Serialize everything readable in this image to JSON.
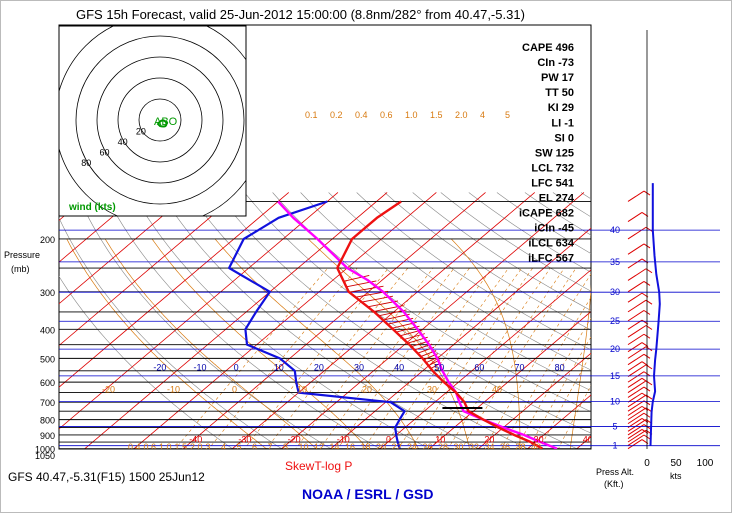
{
  "header": {
    "title": "GFS 15h Forecast, valid 25-Jun-2012 15:00:00 (8.8nm/282° from 40.47,-5.31)"
  },
  "footer": {
    "left": "GFS 40.47,-5.31(F15) 1500 25Jun12",
    "center_title": "SkewT-log P",
    "agency": "NOAA / ESRL / GSD",
    "press_alt_label": "Press Alt.",
    "kft_label": "(Kft.)",
    "kts_label": "kts"
  },
  "colors": {
    "temperature": "#ee1111",
    "dewpoint": "#1111dd",
    "parcel": "#ff00ff",
    "isotherm": "#dd0000",
    "dry_adiabat": "#888888",
    "moist_adiabat": "#d87a10",
    "mixing_ratio": "#d87a10",
    "isobar_line": "#000000",
    "height_line": "#0000cc",
    "wind_barb": "#dd0000",
    "wind_speed": "#1111dd",
    "agency": "#0000cc",
    "hodograph_label": "#009900"
  },
  "chart_data": {
    "type": "skewt",
    "pressure_axis": {
      "label": "Pressure (mb)",
      "label_word": "Pressure",
      "label_unit": "(mb)",
      "levels": [
        200,
        300,
        400,
        500,
        600,
        700,
        800,
        900,
        1000,
        1050
      ],
      "lines": [
        150,
        200,
        250,
        300,
        350,
        400,
        450,
        500,
        550,
        600,
        650,
        700,
        750,
        800,
        850,
        900,
        950,
        1000
      ]
    },
    "isotherm_labels": [
      {
        "t": -40,
        "p": 925
      },
      {
        "t": -30,
        "p": 925
      },
      {
        "t": -20,
        "p": 925
      },
      {
        "t": -10,
        "p": 925
      },
      {
        "t": 0,
        "p": 925
      },
      {
        "t": 10,
        "p": 925
      },
      {
        "t": 20,
        "p": 925
      },
      {
        "t": 30,
        "p": 925
      },
      {
        "t": 40,
        "p": 925
      }
    ],
    "theta_labels": [
      -20,
      -10,
      0,
      10,
      20,
      30,
      40,
      50,
      60,
      70,
      80
    ],
    "theta_e_labels": [
      -20,
      -10,
      0,
      10,
      20,
      30,
      40
    ],
    "mixing_ratio_labels": [
      "0.1",
      "0.2",
      "0.4",
      "0.6",
      "1.0",
      "1.5",
      "2.0",
      "4",
      "5"
    ],
    "mixing_ratio_labels_bottom": [
      "0.4",
      "0.6",
      "1.0",
      "1.5",
      "2.0",
      "3",
      "4",
      "5",
      "6",
      "7",
      "8",
      "10",
      "12",
      "14",
      "16",
      "18",
      "20",
      "22",
      "24",
      "26",
      "28",
      "30",
      "32",
      "34",
      "36",
      "38",
      "40"
    ],
    "temperature": [
      {
        "p": 1000,
        "t": 33
      },
      {
        "p": 950,
        "t": 29
      },
      {
        "p": 900,
        "t": 24
      },
      {
        "p": 850,
        "t": 19
      },
      {
        "p": 800,
        "t": 14
      },
      {
        "p": 750,
        "t": 9
      },
      {
        "p": 700,
        "t": 6
      },
      {
        "p": 650,
        "t": 2
      },
      {
        "p": 600,
        "t": -3
      },
      {
        "p": 550,
        "t": -8
      },
      {
        "p": 500,
        "t": -13
      },
      {
        "p": 450,
        "t": -19
      },
      {
        "p": 400,
        "t": -26
      },
      {
        "p": 350,
        "t": -34
      },
      {
        "p": 300,
        "t": -44
      },
      {
        "p": 250,
        "t": -52
      },
      {
        "p": 200,
        "t": -56
      },
      {
        "p": 170,
        "t": -56
      },
      {
        "p": 150,
        "t": -55
      }
    ],
    "dewpoint": [
      {
        "p": 1000,
        "t": 4
      },
      {
        "p": 950,
        "t": 2
      },
      {
        "p": 900,
        "t": 0
      },
      {
        "p": 850,
        "t": -2
      },
      {
        "p": 800,
        "t": -3
      },
      {
        "p": 750,
        "t": -4
      },
      {
        "p": 700,
        "t": -9
      },
      {
        "p": 650,
        "t": -30
      },
      {
        "p": 600,
        "t": -33
      },
      {
        "p": 550,
        "t": -36
      },
      {
        "p": 500,
        "t": -42
      },
      {
        "p": 450,
        "t": -52
      },
      {
        "p": 400,
        "t": -56
      },
      {
        "p": 350,
        "t": -58
      },
      {
        "p": 300,
        "t": -60
      },
      {
        "p": 250,
        "t": -74
      },
      {
        "p": 200,
        "t": -78
      },
      {
        "p": 170,
        "t": -76
      },
      {
        "p": 150,
        "t": -70
      }
    ],
    "parcel": [
      {
        "p": 1000,
        "t": 36
      },
      {
        "p": 950,
        "t": 31
      },
      {
        "p": 900,
        "t": 26
      },
      {
        "p": 850,
        "t": 20
      },
      {
        "p": 800,
        "t": 14
      },
      {
        "p": 750,
        "t": 8
      },
      {
        "p": 700,
        "t": 5
      },
      {
        "p": 650,
        "t": 2
      },
      {
        "p": 600,
        "t": -2
      },
      {
        "p": 550,
        "t": -6
      },
      {
        "p": 500,
        "t": -10
      },
      {
        "p": 450,
        "t": -15
      },
      {
        "p": 400,
        "t": -21
      },
      {
        "p": 350,
        "t": -28
      },
      {
        "p": 300,
        "t": -37
      },
      {
        "p": 274,
        "t": -43
      },
      {
        "p": 250,
        "t": -50
      },
      {
        "p": 200,
        "t": -63
      },
      {
        "p": 170,
        "t": -73
      },
      {
        "p": 150,
        "t": -80
      }
    ],
    "lcl_marker": {
      "p": 732,
      "t": 7
    },
    "indices": [
      {
        "label": "CAPE",
        "value": "496"
      },
      {
        "label": "CIn",
        "value": "-73"
      },
      {
        "label": "PW",
        "value": "17"
      },
      {
        "label": "TT",
        "value": "50"
      },
      {
        "label": "KI",
        "value": "29"
      },
      {
        "label": "LI",
        "value": "-1"
      },
      {
        "label": "SI",
        "value": "0"
      },
      {
        "label": "SW",
        "value": "125"
      },
      {
        "label": "LCL",
        "value": "732"
      },
      {
        "label": "LFC",
        "value": "541"
      },
      {
        "label": "EL",
        "value": "274"
      },
      {
        "label": "iCAPE",
        "value": "682"
      },
      {
        "label": "iCIn",
        "value": "-45"
      },
      {
        "label": "iLCL",
        "value": "634"
      },
      {
        "label": "iLFC",
        "value": "567"
      }
    ],
    "height_kft": [
      1,
      5,
      10,
      15,
      20,
      25,
      30,
      35,
      40
    ],
    "wind_speed_axis": {
      "ticks": [
        0,
        50,
        100
      ],
      "unit": "kts"
    },
    "wind_speed_profile": [
      {
        "kft": 1,
        "kts": 6
      },
      {
        "kft": 5,
        "kts": 7
      },
      {
        "kft": 8,
        "kts": 8
      },
      {
        "kft": 10,
        "kts": 10
      },
      {
        "kft": 12,
        "kts": 14
      },
      {
        "kft": 15,
        "kts": 12
      },
      {
        "kft": 18,
        "kts": 14
      },
      {
        "kft": 20,
        "kts": 16
      },
      {
        "kft": 25,
        "kts": 20
      },
      {
        "kft": 28,
        "kts": 22
      },
      {
        "kft": 30,
        "kts": 21
      },
      {
        "kft": 33,
        "kts": 16
      },
      {
        "kft": 36,
        "kts": 13
      },
      {
        "kft": 40,
        "kts": 10
      },
      {
        "kft": 44,
        "kts": 10
      },
      {
        "kft": 47,
        "kts": 10
      }
    ],
    "hodograph": {
      "ring_labels": [
        "20",
        "40",
        "60",
        "80"
      ],
      "label": "wind (kts)",
      "center_text": "ABO"
    }
  }
}
